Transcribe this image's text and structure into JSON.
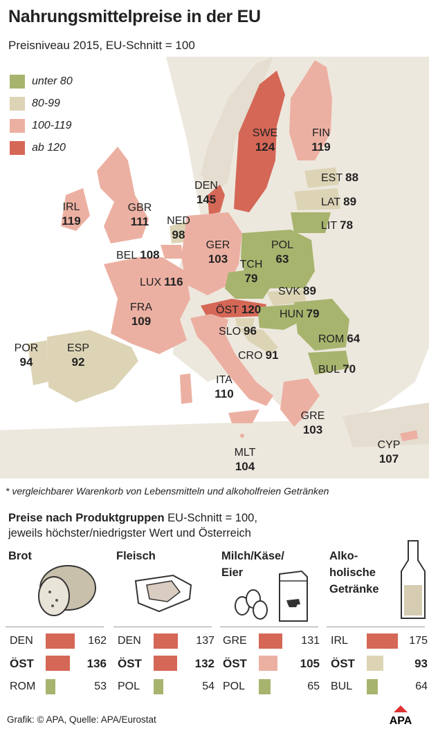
{
  "title": "Nahrungsmittelpreise in der EU",
  "subtitle": "Preisniveau 2015, EU-Schnitt = 100",
  "colors": {
    "under80": "#a7b46e",
    "from80": "#ddd4b6",
    "from100": "#ecb0a2",
    "over120": "#d56757",
    "land": "#ede8de",
    "water": "#ffffff"
  },
  "legend": [
    {
      "label": "unter 80",
      "color": "#a7b46e"
    },
    {
      "label": "80-99",
      "color": "#ddd4b6"
    },
    {
      "label": "100-119",
      "color": "#ecb0a2"
    },
    {
      "label": "ab 120",
      "color": "#d56757"
    }
  ],
  "countries": [
    {
      "code": "SWE",
      "value": "124"
    },
    {
      "code": "FIN",
      "value": "119"
    },
    {
      "code": "DEN",
      "value": "145"
    },
    {
      "code": "IRL",
      "value": "119"
    },
    {
      "code": "GBR",
      "value": "111"
    },
    {
      "code": "NED",
      "value": "98"
    },
    {
      "code": "BEL",
      "value": "108"
    },
    {
      "code": "LUX",
      "value": "116"
    },
    {
      "code": "GER",
      "value": "103"
    },
    {
      "code": "POL",
      "value": "63"
    },
    {
      "code": "TCH",
      "value": "79"
    },
    {
      "code": "FRA",
      "value": "109"
    },
    {
      "code": "ÖST",
      "value": "120"
    },
    {
      "code": "SLO",
      "value": "96"
    },
    {
      "code": "HUN",
      "value": "79"
    },
    {
      "code": "SVK",
      "value": "89"
    },
    {
      "code": "ROM",
      "value": "64"
    },
    {
      "code": "CRO",
      "value": "91"
    },
    {
      "code": "BUL",
      "value": "70"
    },
    {
      "code": "POR",
      "value": "94"
    },
    {
      "code": "ESP",
      "value": "92"
    },
    {
      "code": "ITA",
      "value": "110"
    },
    {
      "code": "GRE",
      "value": "103"
    },
    {
      "code": "MLT",
      "value": "104"
    },
    {
      "code": "CYP",
      "value": "107"
    },
    {
      "code": "EST",
      "value": "88"
    },
    {
      "code": "LAT",
      "value": "89"
    },
    {
      "code": "LIT",
      "value": "78"
    }
  ],
  "footnote": "* vergleichbarer Warenkorb von Lebensmitteln und alkoholfreien Getränken",
  "section": {
    "heading": "Preise nach Produktgruppen",
    "heading_rest": " EU-Schnitt = 100,",
    "line2": "jeweils höchster/niedrigster Wert und Österreich"
  },
  "groups": [
    {
      "title": "Brot",
      "icon": "bread-icon",
      "rows": [
        {
          "code": "DEN",
          "value": 162,
          "label": "162"
        },
        {
          "code": "ÖST",
          "value": 136,
          "label": "136"
        },
        {
          "code": "ROM",
          "value": 53,
          "label": "53"
        }
      ]
    },
    {
      "title": "Fleisch",
      "icon": "meat-icon",
      "rows": [
        {
          "code": "DEN",
          "value": 137,
          "label": "137"
        },
        {
          "code": "ÖST",
          "value": 132,
          "label": "132"
        },
        {
          "code": "POL",
          "value": 54,
          "label": "54"
        }
      ]
    },
    {
      "title": "Milch/Käse/\nEier",
      "icon": "milk-eggs-icon",
      "rows": [
        {
          "code": "GRE",
          "value": 131,
          "label": "131"
        },
        {
          "code": "ÖST",
          "value": 105,
          "label": "105"
        },
        {
          "code": "POL",
          "value": 65,
          "label": "65"
        }
      ]
    },
    {
      "title": "Alko-\nholische\nGetränke",
      "icon": "bottle-icon",
      "rows": [
        {
          "code": "IRL",
          "value": 175,
          "label": "175"
        },
        {
          "code": "ÖST",
          "value": 93,
          "label": "93"
        },
        {
          "code": "BUL",
          "value": 64,
          "label": "64"
        }
      ]
    }
  ],
  "credit": "Grafik: © APA, Quelle: APA/Eurostat",
  "logo": "APA"
}
